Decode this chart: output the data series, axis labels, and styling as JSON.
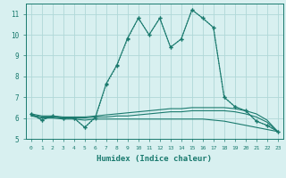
{
  "x": [
    0,
    1,
    2,
    3,
    4,
    5,
    6,
    7,
    8,
    9,
    10,
    11,
    12,
    13,
    14,
    15,
    16,
    17,
    18,
    19,
    20,
    21,
    22,
    23
  ],
  "line_dotted": [
    6.2,
    5.9,
    6.1,
    6.0,
    6.0,
    5.55,
    6.0,
    7.6,
    8.5,
    9.8,
    10.8,
    10.0,
    10.8,
    9.4,
    9.8,
    11.2,
    10.8,
    10.35,
    7.0,
    6.55,
    6.35,
    5.85,
    5.65,
    5.35
  ],
  "line_solid": [
    6.2,
    5.9,
    6.1,
    6.0,
    6.0,
    5.55,
    6.05,
    7.65,
    8.55,
    9.85,
    10.8,
    10.0,
    10.8,
    9.4,
    9.8,
    11.2,
    10.8,
    10.35,
    7.0,
    6.55,
    6.35,
    5.85,
    5.65,
    5.35
  ],
  "line_flat1": [
    6.2,
    6.1,
    6.1,
    6.05,
    6.05,
    6.05,
    6.1,
    6.15,
    6.2,
    6.25,
    6.3,
    6.35,
    6.4,
    6.45,
    6.45,
    6.5,
    6.5,
    6.5,
    6.5,
    6.45,
    6.35,
    6.2,
    5.9,
    5.35
  ],
  "line_flat2": [
    6.15,
    6.05,
    6.05,
    6.0,
    6.0,
    6.0,
    6.05,
    6.05,
    6.1,
    6.1,
    6.15,
    6.2,
    6.25,
    6.3,
    6.3,
    6.35,
    6.35,
    6.35,
    6.35,
    6.3,
    6.2,
    6.05,
    5.8,
    5.35
  ],
  "line_flat3": [
    6.1,
    6.0,
    6.0,
    5.95,
    5.95,
    5.9,
    5.95,
    5.95,
    5.95,
    5.95,
    5.95,
    5.95,
    5.95,
    5.95,
    5.95,
    5.95,
    5.95,
    5.9,
    5.85,
    5.75,
    5.65,
    5.55,
    5.45,
    5.35
  ],
  "color": "#1a7a6e",
  "bg_color": "#d8f0f0",
  "grid_color": "#b0d8d8",
  "xlabel": "Humidex (Indice chaleur)",
  "ylim": [
    5.0,
    11.5
  ],
  "xlim": [
    -0.5,
    23.5
  ],
  "yticks": [
    5,
    6,
    7,
    8,
    9,
    10,
    11
  ],
  "xticks": [
    0,
    1,
    2,
    3,
    4,
    5,
    6,
    7,
    8,
    9,
    10,
    11,
    12,
    13,
    14,
    15,
    16,
    17,
    18,
    19,
    20,
    21,
    22,
    23
  ]
}
